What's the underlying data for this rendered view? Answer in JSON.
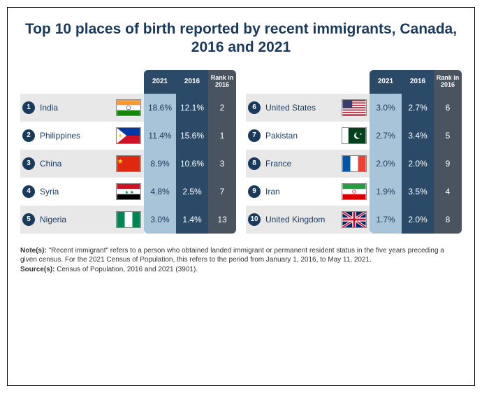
{
  "title": "Top 10 places of birth reported by recent immigrants, Canada, 2016 and 2021",
  "headers": {
    "col_2021": "2021",
    "col_2016": "2016",
    "col_rank2016": "Rank in 2016"
  },
  "columns": [
    [
      {
        "rank": "1",
        "name": "India",
        "v2021": "18.6%",
        "v2016": "12.1%",
        "r2016": "2",
        "flag": "india"
      },
      {
        "rank": "2",
        "name": "Philippines",
        "v2021": "11.4%",
        "v2016": "15.6%",
        "r2016": "1",
        "flag": "philippines"
      },
      {
        "rank": "3",
        "name": "China",
        "v2021": "8.9%",
        "v2016": "10.6%",
        "r2016": "3",
        "flag": "china"
      },
      {
        "rank": "4",
        "name": "Syria",
        "v2021": "4.8%",
        "v2016": "2.5%",
        "r2016": "7",
        "flag": "syria"
      },
      {
        "rank": "5",
        "name": "Nigeria",
        "v2021": "3.0%",
        "v2016": "1.4%",
        "r2016": "13",
        "flag": "nigeria"
      }
    ],
    [
      {
        "rank": "6",
        "name": "United States",
        "v2021": "3.0%",
        "v2016": "2.7%",
        "r2016": "6",
        "flag": "us"
      },
      {
        "rank": "7",
        "name": "Pakistan",
        "v2021": "2.7%",
        "v2016": "3.4%",
        "r2016": "5",
        "flag": "pakistan"
      },
      {
        "rank": "8",
        "name": "France",
        "v2021": "2.0%",
        "v2016": "2.0%",
        "r2016": "9",
        "flag": "france"
      },
      {
        "rank": "9",
        "name": "Iran",
        "v2021": "1.9%",
        "v2016": "3.5%",
        "r2016": "4",
        "flag": "iran"
      },
      {
        "rank": "10",
        "name": "United Kingdom",
        "v2021": "1.7%",
        "v2016": "2.0%",
        "r2016": "8",
        "flag": "uk"
      }
    ]
  ],
  "notes_label": "Note(s): ",
  "notes_text": "\"Recent immigrant\" refers to a person who obtained landed immigrant or permanent resident status in the five years preceding a given census. For the 2021 Census of Population, this refers to the period from January 1, 2016, to May 11, 2021.",
  "source_label": "Source(s): ",
  "source_text": "Census of Population, 2016 and 2021 (3901).",
  "colors": {
    "title": "#1a3a5c",
    "panel_2021": "#a8c4d8",
    "panel_2016": "#2a4a68",
    "panel_r16": "#4a5460",
    "stripe": "#e8e8e8"
  }
}
